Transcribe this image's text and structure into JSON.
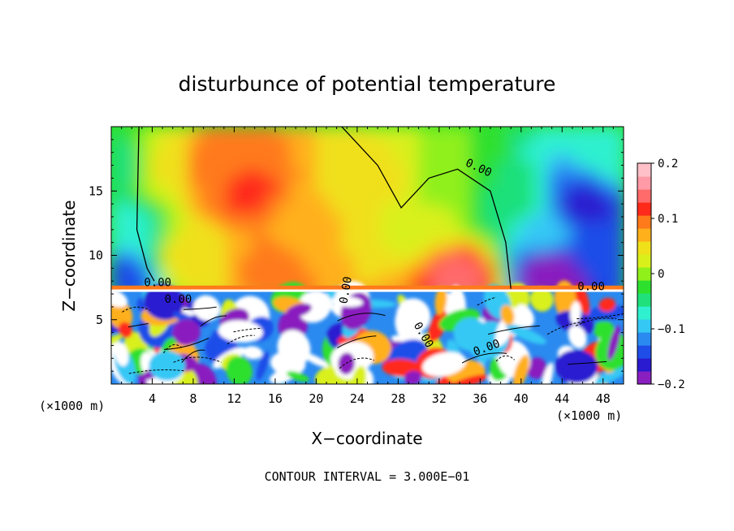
{
  "chart_data": {
    "type": "heatmap",
    "title": "disturbunce of potential temperature",
    "xlabel": "X−coordinate",
    "ylabel": "Z−coordinate",
    "x_unit_left": "(×1000 m)",
    "x_unit_right": "(×1000 m)",
    "xlim": [
      0,
      50
    ],
    "ylim": [
      0,
      20
    ],
    "xticks": [
      4,
      8,
      12,
      16,
      20,
      24,
      28,
      32,
      36,
      40,
      44,
      48
    ],
    "xtick_labels": [
      "4",
      "8",
      "12",
      "16",
      "20",
      "24",
      "28",
      "32",
      "36",
      "40",
      "44",
      "48"
    ],
    "yticks": [
      5,
      10,
      15
    ],
    "ytick_labels": [
      "5",
      "10",
      "15"
    ],
    "footer": "CONTOUR INTERVAL = 3.000E−01",
    "colorbar": {
      "min": -0.2,
      "max": 0.2,
      "ticks": [
        0.2,
        0.1,
        0,
        -0.1,
        -0.2
      ],
      "tick_labels": [
        "0.2",
        "0.1",
        "0",
        "−0.1",
        "−0.2"
      ],
      "colors": [
        "#8a1fbf",
        "#2a1ad0",
        "#1f4de8",
        "#2a8af0",
        "#35c8f5",
        "#2ff0cf",
        "#1fe07a",
        "#2ee02e",
        "#8ff01a",
        "#d9f01a",
        "#f0e01a",
        "#ffb01a",
        "#ff7a1a",
        "#ff2a1a",
        "#ff6a6a",
        "#ff9aa6",
        "#ffc0c8"
      ]
    },
    "contour_labels": [
      "0.00",
      "0.00",
      "0.00",
      "0.00",
      "0.00",
      "0.00",
      "0.00"
    ],
    "layer_top": 7.3,
    "upper_field_points": [
      {
        "x": 0.5,
        "z": 8.5,
        "v": -0.15
      },
      {
        "x": 1.5,
        "z": 12,
        "v": -0.07
      },
      {
        "x": 1,
        "z": 17,
        "v": -0.05
      },
      {
        "x": 5,
        "z": 17,
        "v": 0.04
      },
      {
        "x": 10,
        "z": 17,
        "v": 0.1
      },
      {
        "x": 13,
        "z": 15,
        "v": 0.11
      },
      {
        "x": 16,
        "z": 9,
        "v": 0.09
      },
      {
        "x": 8,
        "z": 10,
        "v": 0.05
      },
      {
        "x": 20,
        "z": 12,
        "v": 0.06
      },
      {
        "x": 26,
        "z": 16,
        "v": 0.04
      },
      {
        "x": 30,
        "z": 12,
        "v": 0.03
      },
      {
        "x": 34,
        "z": 8.3,
        "v": 0.14
      },
      {
        "x": 33,
        "z": 16,
        "v": -0.01
      },
      {
        "x": 39,
        "z": 14,
        "v": -0.04
      },
      {
        "x": 42,
        "z": 12,
        "v": -0.09
      },
      {
        "x": 46,
        "z": 14,
        "v": -0.16
      },
      {
        "x": 48,
        "z": 10,
        "v": -0.13
      },
      {
        "x": 43,
        "z": 8.5,
        "v": -0.2
      },
      {
        "x": 49.5,
        "z": 18,
        "v": -0.06
      }
    ],
    "lower_layer_seed": 7,
    "zero_contour_points": [
      [
        2.7,
        20
      ],
      [
        2.6,
        16
      ],
      [
        2.5,
        12
      ],
      [
        3.5,
        9
      ],
      [
        4.2,
        8
      ]
    ],
    "zero_contour_right_points": [
      [
        22.5,
        20
      ],
      [
        26,
        17
      ],
      [
        28.3,
        13.7
      ],
      [
        31,
        16
      ],
      [
        33.8,
        16.7
      ],
      [
        37,
        15
      ],
      [
        38.5,
        11
      ],
      [
        39,
        7.4
      ]
    ]
  }
}
